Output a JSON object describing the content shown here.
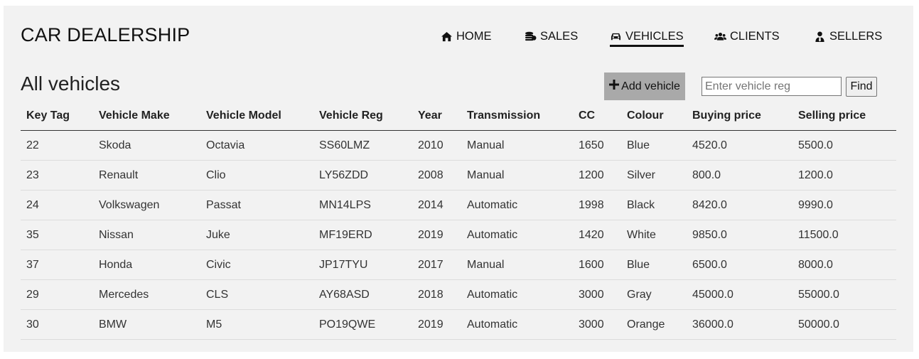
{
  "app": {
    "title": "CAR DEALERSHIP"
  },
  "nav": [
    {
      "label": "HOME",
      "icon": "home-icon",
      "active": false
    },
    {
      "label": "SALES",
      "icon": "coins-icon",
      "active": false
    },
    {
      "label": "VEHICLES",
      "icon": "car-icon",
      "active": true
    },
    {
      "label": "CLIENTS",
      "icon": "users-icon",
      "active": false
    },
    {
      "label": "SELLERS",
      "icon": "user-tie-icon",
      "active": false
    }
  ],
  "page": {
    "title": "All vehicles"
  },
  "toolbar": {
    "add_label": "Add vehicle",
    "search_placeholder": "Enter vehicle reg",
    "search_value": "",
    "find_label": "Find"
  },
  "table": {
    "columns": [
      "Key Tag",
      "Vehicle Make",
      "Vehicle Model",
      "Vehicle Reg",
      "Year",
      "Transmission",
      "CC",
      "Colour",
      "Buying price",
      "Selling price"
    ],
    "rows": [
      [
        "22",
        "Skoda",
        "Octavia",
        "SS60LMZ",
        "2010",
        "Manual",
        "1650",
        "Blue",
        "4520.0",
        "5500.0"
      ],
      [
        "23",
        "Renault",
        "Clio",
        "LY56ZDD",
        "2008",
        "Manual",
        "1200",
        "Silver",
        "800.0",
        "1200.0"
      ],
      [
        "24",
        "Volkswagen",
        "Passat",
        "MN14LPS",
        "2014",
        "Automatic",
        "1998",
        "Black",
        "8420.0",
        "9990.0"
      ],
      [
        "35",
        "Nissan",
        "Juke",
        "MF19ERD",
        "2019",
        "Automatic",
        "1420",
        "White",
        "9850.0",
        "11500.0"
      ],
      [
        "37",
        "Honda",
        "Civic",
        "JP17TYU",
        "2017",
        "Manual",
        "1600",
        "Blue",
        "6500.0",
        "8000.0"
      ],
      [
        "29",
        "Mercedes",
        "CLS",
        "AY68ASD",
        "2018",
        "Automatic",
        "3000",
        "Gray",
        "45000.0",
        "55000.0"
      ],
      [
        "30",
        "BMW",
        "M5",
        "PO19QWE",
        "2019",
        "Automatic",
        "3000",
        "Orange",
        "36000.0",
        "50000.0"
      ]
    ]
  }
}
